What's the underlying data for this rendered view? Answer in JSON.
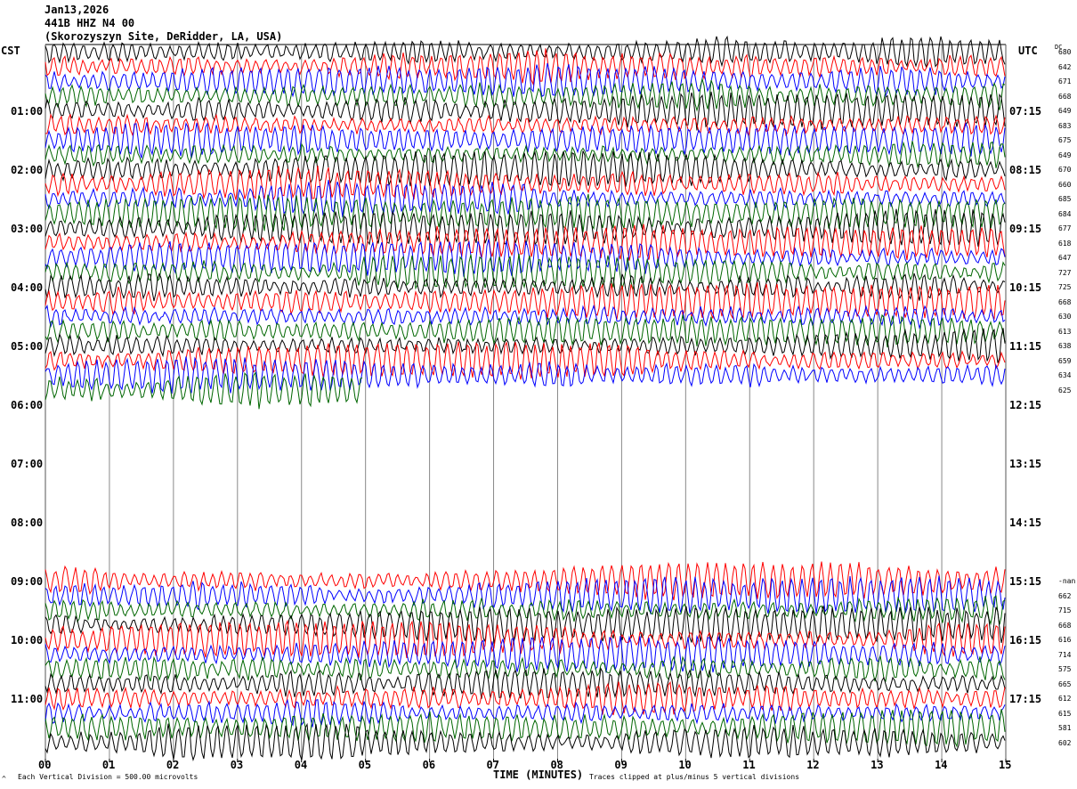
{
  "header": {
    "date": "Jan13,2026",
    "station": "441B HHZ N4 00",
    "site": "(Skorozyszyn Site, DeRidder, LA, USA)"
  },
  "left_axis_label": "CST",
  "right_axis_label": "UTC",
  "dc_label": "DC",
  "footer": {
    "scale": "Each Vertical Division =  500.00 microvolts",
    "xlabel": "TIME (MINUTES)",
    "clip_note": "Traces clipped at plus/minus 5 vertical divisions",
    "corner": "^"
  },
  "chart_data": {
    "type": "line",
    "title": "Jan13,2026 441B HHZ N4 00 helicorder",
    "xlabel": "TIME (MINUTES)",
    "xlim": [
      0,
      15
    ],
    "x_ticks": [
      "00",
      "01",
      "02",
      "03",
      "04",
      "05",
      "06",
      "07",
      "08",
      "09",
      "10",
      "11",
      "12",
      "13",
      "14",
      "15"
    ],
    "cst_ticks": [
      {
        "row": 4,
        "label": "01:00"
      },
      {
        "row": 8,
        "label": "02:00"
      },
      {
        "row": 12,
        "label": "03:00"
      },
      {
        "row": 16,
        "label": "04:00"
      },
      {
        "row": 20,
        "label": "05:00"
      },
      {
        "row": 24,
        "label": "06:00"
      },
      {
        "row": 28,
        "label": "07:00"
      },
      {
        "row": 32,
        "label": "08:00"
      },
      {
        "row": 36,
        "label": "09:00"
      },
      {
        "row": 40,
        "label": "10:00"
      },
      {
        "row": 44,
        "label": "11:00"
      }
    ],
    "utc_ticks": [
      {
        "row": 4,
        "label": "07:15"
      },
      {
        "row": 8,
        "label": "08:15"
      },
      {
        "row": 12,
        "label": "09:15"
      },
      {
        "row": 16,
        "label": "10:15"
      },
      {
        "row": 20,
        "label": "11:15"
      },
      {
        "row": 24,
        "label": "12:15"
      },
      {
        "row": 28,
        "label": "13:15"
      },
      {
        "row": 32,
        "label": "14:15"
      },
      {
        "row": 36,
        "label": "15:15"
      },
      {
        "row": 40,
        "label": "16:15"
      },
      {
        "row": 44,
        "label": "17:15"
      }
    ],
    "trace_colors": [
      "#000000",
      "#ff0000",
      "#0000ff",
      "#006600"
    ],
    "sections": [
      {
        "start_row": 0,
        "color_offset": 0,
        "dc": [
          "680",
          "642",
          "671",
          "668",
          "649",
          "683",
          "675",
          "649",
          "670",
          "660",
          "685",
          "684",
          "677",
          "618",
          "647",
          "727",
          "725",
          "668",
          "630",
          "613",
          "638",
          "659",
          "634",
          "625"
        ],
        "last_row_fraction": 0.33
      },
      {
        "start_row": 36,
        "color_offset": 1,
        "dc": [
          "-nan",
          "662",
          "715",
          "668",
          "616",
          "714",
          "575",
          "665",
          "612",
          "615",
          "581",
          "602"
        ],
        "last_row_fraction": 1.0
      }
    ],
    "scale_microvolts_per_division": 500.0,
    "clip_divisions": 5
  }
}
